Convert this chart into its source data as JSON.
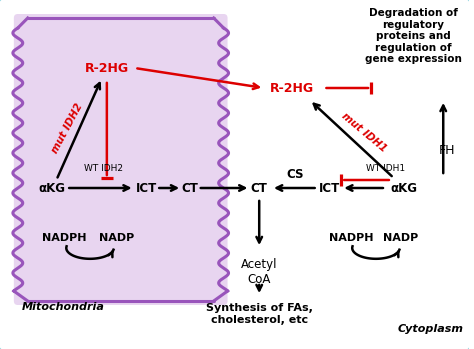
{
  "bg_outer": "#7ecfdb",
  "bg_mito_fill": "#e8d5f0",
  "bg_mito_border": "#9955bb",
  "black": "#000000",
  "red": "#dd0000",
  "title_text": "Degradation of\nregulatory\nproteins and\nregulation of\ngene expression",
  "mito_label": "Mitochondria",
  "cyto_label": "Cytoplasm",
  "fh_label": "FH",
  "cs_label": "CS",
  "wt_idh2_label": "WT IDH2",
  "wt_idh1_label": "WT IDH1",
  "mut_idh2_label": "mut IDH2",
  "mut_idh1_label": "mut IDH1",
  "r2hg_label": "R-2HG",
  "akg_label": "αKG",
  "ict_label": "ICT",
  "ct_label": "CT",
  "nadph_label": "NADPH",
  "nadp_label": "NADP",
  "acetyl_label": "Acetyl\nCoA",
  "synthesis_label": "Synthesis of FAs,\ncholesterol, etc"
}
